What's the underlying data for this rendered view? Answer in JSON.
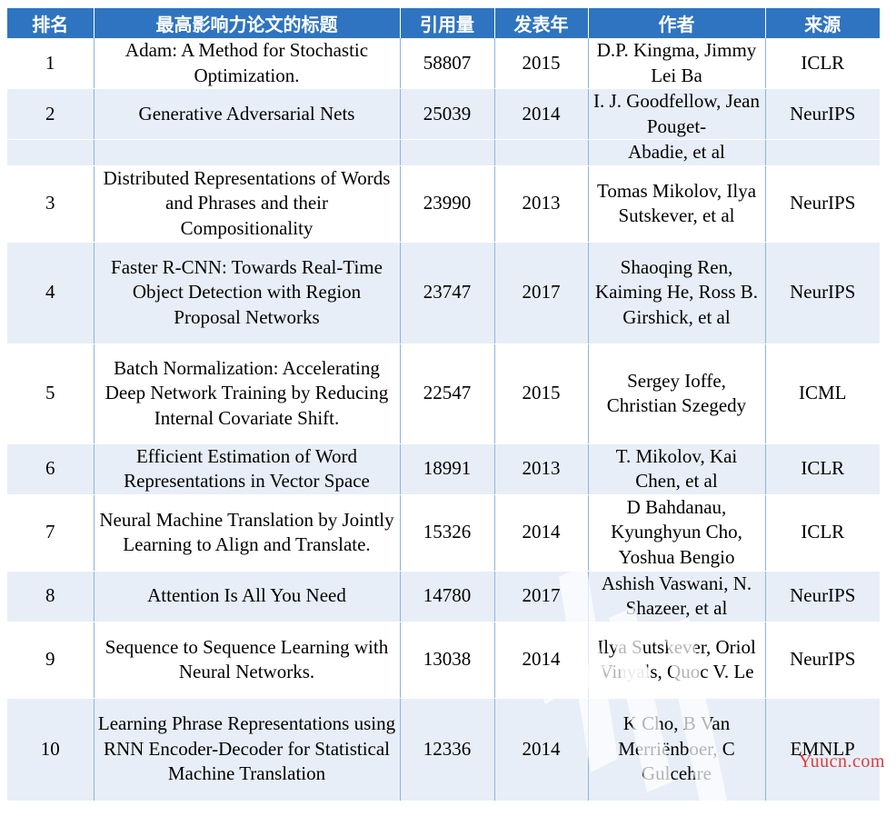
{
  "header": {
    "rank": "排名",
    "title": "最高影响力论文的标题",
    "citations": "引用量",
    "year": "发表年",
    "authors": "作者",
    "source": "来源"
  },
  "rows": [
    {
      "rank": "1",
      "title": "Adam: A Method for Stochastic Optimization.",
      "citations": "58807",
      "year": "2015",
      "authors": "D.P. Kingma, Jimmy Lei Ba",
      "source": "ICLR"
    },
    {
      "rank": "2",
      "title": "Generative Adversarial Nets",
      "citations": "25039",
      "year": "2014",
      "authors": "I. J. Goodfellow, Jean Pouget-",
      "source": "NeurIPS"
    },
    {
      "rank": "",
      "title": "",
      "citations": "",
      "year": "",
      "authors": "Abadie, et al",
      "source": ""
    },
    {
      "rank": "3",
      "title": "Distributed Representations of Words and Phrases and their Compositionality",
      "citations": "23990",
      "year": "2013",
      "authors": "Tomas Mikolov, Ilya Sutskever, et al",
      "source": "NeurIPS"
    },
    {
      "rank": "4",
      "title": "Faster R-CNN: Towards Real-Time Object Detection with Region Proposal Networks",
      "citations": "23747",
      "year": "2017",
      "authors": "Shaoqing Ren, Kaiming He, Ross B. Girshick, et al",
      "source": "NeurIPS"
    },
    {
      "rank": "5",
      "title": "Batch Normalization: Accelerating Deep Network Training by Reducing Internal Covariate Shift.",
      "citations": "22547",
      "year": "2015",
      "authors": "Sergey Ioffe, Christian Szegedy",
      "source": "ICML"
    },
    {
      "rank": "6",
      "title": "Efficient Estimation of Word Representations in Vector Space",
      "citations": "18991",
      "year": "2013",
      "authors": "T. Mikolov, Kai Chen, et al",
      "source": "ICLR"
    },
    {
      "rank": "7",
      "title": "Neural Machine Translation by Jointly Learning to Align and Translate.",
      "citations": "15326",
      "year": "2014",
      "authors": "D Bahdanau, Kyunghyun Cho, Yoshua Bengio",
      "source": "ICLR"
    },
    {
      "rank": "8",
      "title": "Attention Is All You Need",
      "citations": "14780",
      "year": "2017",
      "authors": "Ashish Vaswani, N. Shazeer, et al",
      "source": "NeurIPS"
    },
    {
      "rank": "9",
      "title": "Sequence to Sequence Learning with Neural Networks.",
      "citations": "13038",
      "year": "2014",
      "authors": "Ilya Sutskever, Oriol Vinyals, Quoc V. Le",
      "source": "NeurIPS"
    },
    {
      "rank": "10",
      "title": "Learning Phrase Representations using RNN Encoder-Decoder for Statistical Machine Translation",
      "citations": "12336",
      "year": "2014",
      "authors": "K Cho, B Van Merriënboer, C Gulcehre",
      "source": "EMNLP"
    }
  ],
  "watermark": {
    "text": "Yuucn.com",
    "color": "#e03a3a"
  },
  "colors": {
    "header_bg": "#2f74c0",
    "header_text": "#ffffff",
    "row_shade": "#e8eef7",
    "column_rule": "#8eb3da"
  }
}
